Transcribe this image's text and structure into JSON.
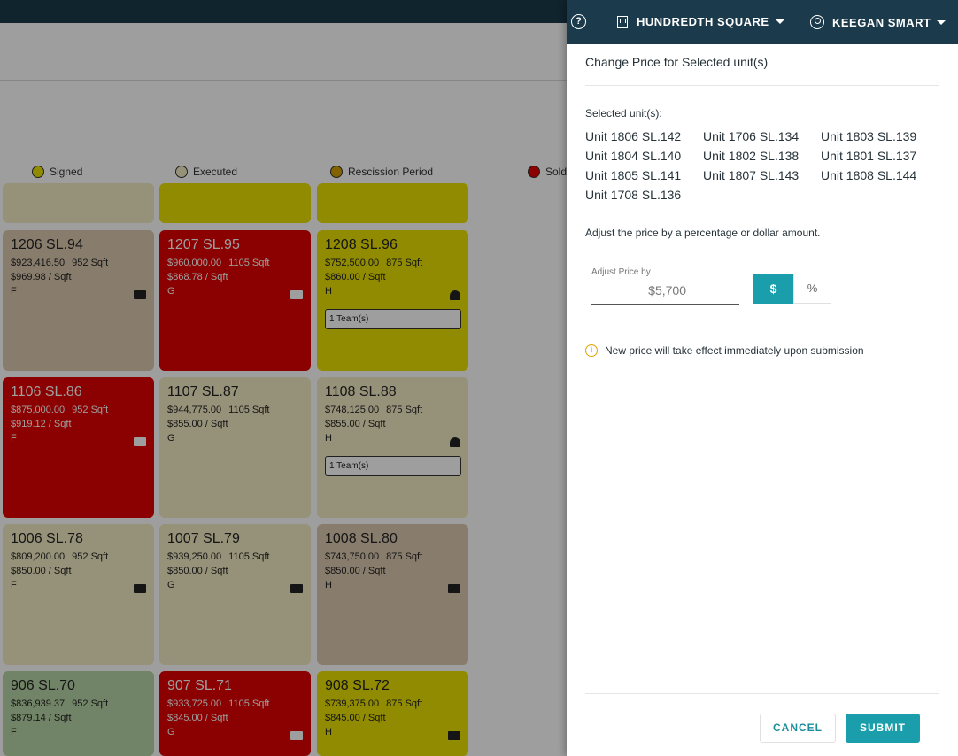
{
  "colors": {
    "topbar": "#1b3a4b",
    "accent": "#1a9eab",
    "signed": "#e8e000",
    "executed": "#f3ebc3",
    "rescission": "#d4a000",
    "sold": "#e00000"
  },
  "legend": [
    {
      "label": "Signed",
      "color": "#e8e000"
    },
    {
      "label": "Executed",
      "color": "#f3ebc3"
    },
    {
      "label": "Rescission Period",
      "color": "#d4a000"
    },
    {
      "label": "Sold",
      "color": "#e00000"
    }
  ],
  "units": [
    {
      "title": "1206 SL.94",
      "price": "$923,416.50",
      "sqft": "952 Sqft",
      "per_sqft": "$969.98 / Sqft",
      "type": "F",
      "icon": "card-icon"
    },
    {
      "title": "1207 SL.95",
      "price": "$960,000.00",
      "sqft": "1105 Sqft",
      "per_sqft": "$868.78 / Sqft",
      "type": "G",
      "icon": "card-icon"
    },
    {
      "title": "1208 SL.96",
      "price": "$752,500.00",
      "sqft": "875 Sqft",
      "per_sqft": "$860.00 / Sqft",
      "type": "H",
      "icon": "team-icon",
      "team": "1 Team(s)"
    },
    {
      "title": "1106 SL.86",
      "price": "$875,000.00",
      "sqft": "952 Sqft",
      "per_sqft": "$919.12 / Sqft",
      "type": "F",
      "icon": "card-icon"
    },
    {
      "title": "1107 SL.87",
      "price": "$944,775.00",
      "sqft": "1105 Sqft",
      "per_sqft": "$855.00 / Sqft",
      "type": "G"
    },
    {
      "title": "1108 SL.88",
      "price": "$748,125.00",
      "sqft": "875 Sqft",
      "per_sqft": "$855.00 / Sqft",
      "type": "H",
      "icon": "team-icon",
      "team": "1 Team(s)"
    },
    {
      "title": "1006 SL.78",
      "price": "$809,200.00",
      "sqft": "952 Sqft",
      "per_sqft": "$850.00 / Sqft",
      "type": "F",
      "icon": "card-icon"
    },
    {
      "title": "1007 SL.79",
      "price": "$939,250.00",
      "sqft": "1105 Sqft",
      "per_sqft": "$850.00 / Sqft",
      "type": "G",
      "icon": "card-icon"
    },
    {
      "title": "1008 SL.80",
      "price": "$743,750.00",
      "sqft": "875 Sqft",
      "per_sqft": "$850.00 / Sqft",
      "type": "H",
      "icon": "card-icon"
    },
    {
      "title": "906 SL.70",
      "price": "$836,939.37",
      "sqft": "952 Sqft",
      "per_sqft": "$879.14 / Sqft",
      "type": "F"
    },
    {
      "title": "907 SL.71",
      "price": "$933,725.00",
      "sqft": "1105 Sqft",
      "per_sqft": "$845.00 / Sqft",
      "type": "G",
      "icon": "card-icon"
    },
    {
      "title": "908 SL.72",
      "price": "$739,375.00",
      "sqft": "875 Sqft",
      "per_sqft": "$845.00 / Sqft",
      "type": "H",
      "icon": "card-icon"
    }
  ],
  "panel": {
    "help_glyph": "?",
    "property_name": "HUNDREDTH SQUARE",
    "user_name": "KEEGAN SMART",
    "title": "Change Price for Selected unit(s)",
    "selected_label": "Selected unit(s):",
    "selected_units": [
      "Unit 1806 SL.142",
      "Unit 1706 SL.134",
      "Unit 1803 SL.139",
      "Unit 1804 SL.140",
      "Unit 1802 SL.138",
      "Unit 1801 SL.137",
      "Unit 1805 SL.141",
      "Unit 1807 SL.143",
      "Unit 1808 SL.144",
      "Unit 1708 SL.136"
    ],
    "adjust_desc": "Adjust the price by a percentage or dollar amount.",
    "adjust_label": "Adjust Price by",
    "adjust_value": "$5,700",
    "dollar_label": "$",
    "percent_label": "%",
    "info_glyph": "i",
    "notice": "New price will take effect immediately upon submission",
    "cancel_label": "CANCEL",
    "submit_label": "SUBMIT"
  }
}
